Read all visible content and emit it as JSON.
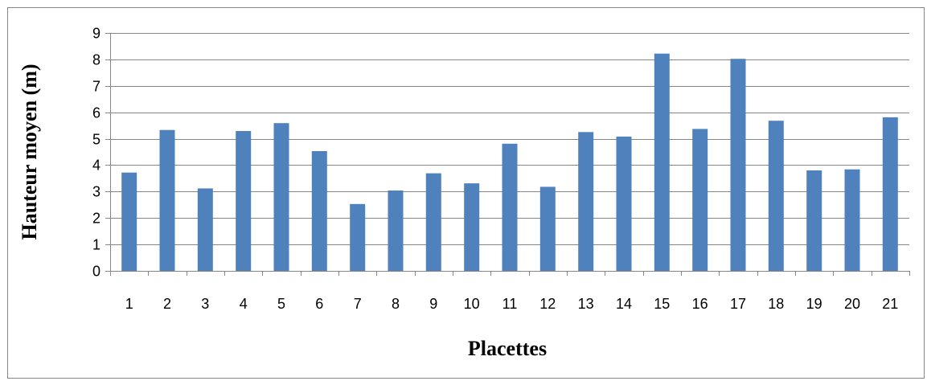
{
  "chart_data": {
    "type": "bar",
    "title": "",
    "xlabel": "Placettes",
    "ylabel": "Hauteur moyen (m)",
    "categories": [
      "1",
      "2",
      "3",
      "4",
      "5",
      "6",
      "7",
      "8",
      "9",
      "10",
      "11",
      "12",
      "13",
      "14",
      "15",
      "16",
      "17",
      "18",
      "19",
      "20",
      "21"
    ],
    "values": [
      3.72,
      5.33,
      3.12,
      5.29,
      5.59,
      4.53,
      2.53,
      3.04,
      3.69,
      3.31,
      4.81,
      3.18,
      5.25,
      5.08,
      8.22,
      5.37,
      8.02,
      5.68,
      3.8,
      3.84,
      5.81
    ],
    "ylim": [
      0,
      9
    ],
    "yticks": [
      0,
      1,
      2,
      3,
      4,
      5,
      6,
      7,
      8,
      9
    ],
    "grid": true,
    "legend": "none",
    "colors": {
      "bar": "#4F81BD",
      "grid": "#868686",
      "axis": "#868686",
      "frame": "#868686",
      "text": "#000000"
    }
  }
}
